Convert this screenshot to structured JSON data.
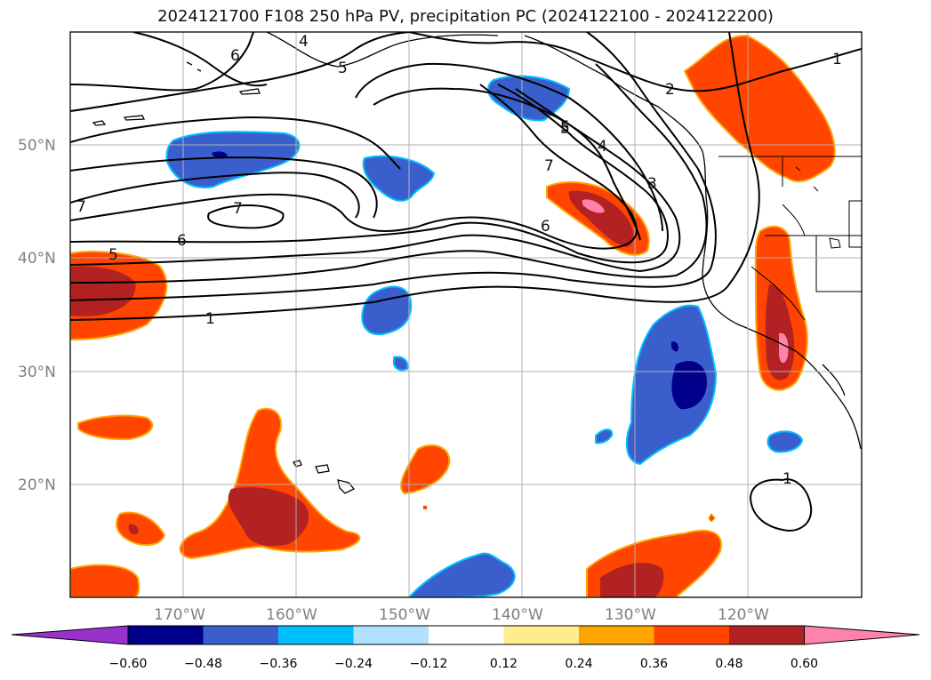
{
  "title": "2024121700 F108 250 hPa PV, precipitation PC (2024122100 - 2024122200)",
  "lat_labels": [
    "50°N",
    "40°N",
    "30°N",
    "20°N"
  ],
  "lon_labels": [
    "170°W",
    "160°W",
    "150°W",
    "140°W",
    "130°W",
    "120°W"
  ],
  "contour_labels": [
    "6",
    "4",
    "5",
    "5",
    "2",
    "1",
    "5",
    "4",
    "7",
    "3",
    "6",
    "7",
    "7",
    "6",
    "5",
    "1",
    "1"
  ],
  "colorbar": {
    "ticks": [
      "−0.60",
      "−0.48",
      "−0.36",
      "−0.24",
      "−0.12",
      "0.12",
      "0.24",
      "0.36",
      "0.48",
      "0.60"
    ],
    "colors": [
      "#9932cc",
      "#00008b",
      "#3a5fcd",
      "#00bfff",
      "#b0e2ff",
      "#ffffff",
      "#ffec8b",
      "#ffa500",
      "#ff4500",
      "#b22222",
      "#ff82ab"
    ]
  },
  "colors": {
    "neg_strong": "#00008b",
    "neg_mid": "#3a5fcd",
    "neg_light": "#00bfff",
    "pos_light": "#ffec8b",
    "pos_mid": "#ff4500",
    "pos_strong": "#b22222",
    "pos_max": "#ff82ab",
    "grid": "#b0b0b0",
    "contour": "#000000"
  }
}
